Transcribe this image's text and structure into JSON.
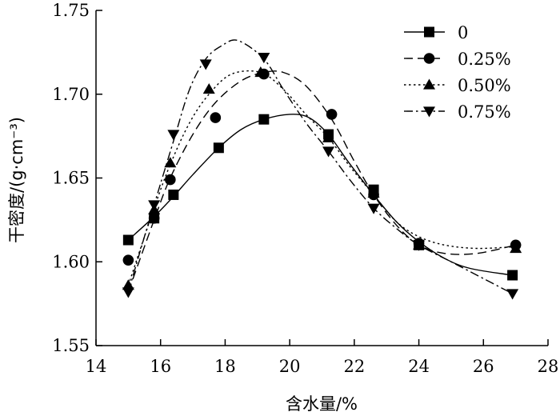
{
  "chart_data": {
    "type": "line",
    "title": "",
    "xlabel": "含水量/%",
    "ylabel": "干密度/(g·cm⁻³)",
    "xlim": [
      14,
      28
    ],
    "ylim": [
      1.55,
      1.75
    ],
    "x_ticks": [
      "14",
      "16",
      "18",
      "20",
      "22",
      "24",
      "26",
      "28"
    ],
    "y_ticks": [
      "1.55",
      "1.60",
      "1.65",
      "1.70",
      "1.75"
    ],
    "grid": false,
    "legend_position": "top-right",
    "series": [
      {
        "name": "0",
        "marker": "square",
        "line_style": "solid",
        "x": [
          15.0,
          15.8,
          16.4,
          17.8,
          19.2,
          21.2,
          22.6,
          24.0,
          26.9
        ],
        "y": [
          1.613,
          1.626,
          1.64,
          1.668,
          1.685,
          1.676,
          1.643,
          1.61,
          1.592
        ],
        "curve_x": [
          15.0,
          15.8,
          16.4,
          17.0,
          17.8,
          18.5,
          19.2,
          20.0,
          20.6,
          21.2,
          21.8,
          22.6,
          23.3,
          24.0,
          24.8,
          25.6,
          26.9
        ],
        "curve_y": [
          1.613,
          1.627,
          1.639,
          1.652,
          1.668,
          1.679,
          1.685,
          1.688,
          1.686,
          1.676,
          1.66,
          1.64,
          1.624,
          1.612,
          1.602,
          1.596,
          1.592
        ]
      },
      {
        "name": "0.25%",
        "marker": "circle",
        "line_style": "dashed",
        "x": [
          15.0,
          15.8,
          16.3,
          17.7,
          19.2,
          21.3,
          22.6,
          24.0,
          27.0
        ],
        "y": [
          1.601,
          1.626,
          1.649,
          1.686,
          1.712,
          1.688,
          1.64,
          1.611,
          1.61
        ],
        "curve_x": [
          15.0,
          15.8,
          16.3,
          17.0,
          17.7,
          18.5,
          19.2,
          19.8,
          20.5,
          21.3,
          22.0,
          22.6,
          23.3,
          24.0,
          24.8,
          25.8,
          27.0
        ],
        "curve_y": [
          1.582,
          1.625,
          1.65,
          1.676,
          1.695,
          1.708,
          1.713,
          1.713,
          1.705,
          1.685,
          1.66,
          1.64,
          1.622,
          1.61,
          1.605,
          1.605,
          1.61
        ]
      },
      {
        "name": "0.50%",
        "marker": "triangle-up",
        "line_style": "dotted",
        "x": [
          15.0,
          15.8,
          16.3,
          17.5,
          19.1,
          21.2,
          22.6,
          24.0,
          27.0
        ],
        "y": [
          1.586,
          1.631,
          1.659,
          1.703,
          1.713,
          1.674,
          1.641,
          1.61,
          1.608
        ],
        "curve_x": [
          15.0,
          15.8,
          16.3,
          16.9,
          17.5,
          18.2,
          19.1,
          19.8,
          20.5,
          21.2,
          21.9,
          22.6,
          23.3,
          24.0,
          24.8,
          25.8,
          27.0
        ],
        "curve_y": [
          1.586,
          1.632,
          1.658,
          1.683,
          1.7,
          1.712,
          1.713,
          1.703,
          1.688,
          1.674,
          1.656,
          1.64,
          1.624,
          1.615,
          1.61,
          1.608,
          1.609
        ]
      },
      {
        "name": "0.75%",
        "marker": "triangle-down",
        "line_style": "dashdot",
        "x": [
          15.0,
          15.8,
          16.4,
          17.4,
          19.2,
          21.2,
          22.6,
          24.0,
          26.9
        ],
        "y": [
          1.582,
          1.634,
          1.676,
          1.718,
          1.722,
          1.666,
          1.632,
          1.61,
          1.581
        ],
        "curve_x": [
          15.0,
          15.5,
          15.8,
          16.4,
          16.9,
          17.4,
          17.9,
          18.4,
          19.2,
          19.8,
          20.5,
          21.2,
          21.9,
          22.6,
          23.3,
          24.0,
          25.0,
          26.0,
          26.9
        ],
        "curve_y": [
          1.582,
          1.615,
          1.634,
          1.672,
          1.703,
          1.721,
          1.729,
          1.732,
          1.721,
          1.703,
          1.683,
          1.666,
          1.648,
          1.632,
          1.62,
          1.61,
          1.6,
          1.59,
          1.581
        ]
      }
    ]
  }
}
